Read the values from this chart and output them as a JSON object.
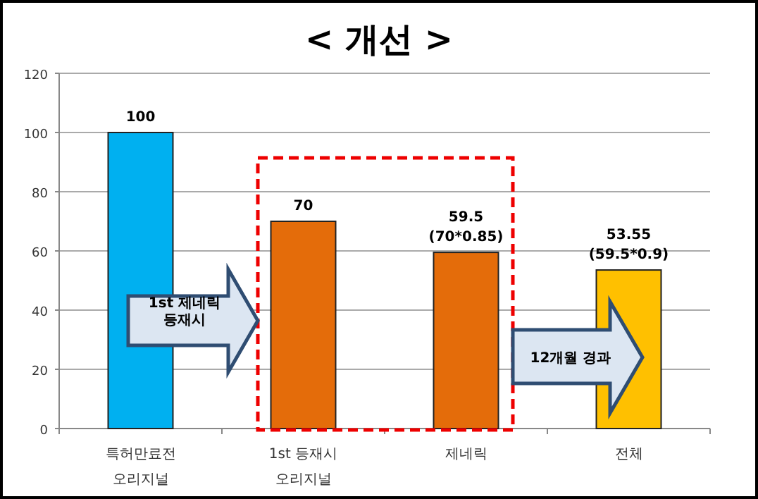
{
  "chart_data": {
    "type": "bar",
    "title": "< 개선 >",
    "categories": [
      "특허만료전\n오리지널",
      "1st 등재시\n오리지널",
      "제네릭",
      "전체"
    ],
    "values": [
      100,
      70,
      59.5,
      53.55
    ],
    "colors": [
      "#00b0f0",
      "#e46c0a",
      "#e46c0a",
      "#ffc000"
    ],
    "value_labels": [
      "100",
      "70",
      "59.5\n(70*0.85)",
      "53.55\n(59.5*0.9)"
    ],
    "annotations": [
      "1st 제네릭\n등재시",
      "12개월 경과"
    ],
    "ylim": [
      0,
      120
    ],
    "yticks": [
      0,
      20,
      40,
      60,
      80,
      100,
      120
    ],
    "grid": "y"
  }
}
